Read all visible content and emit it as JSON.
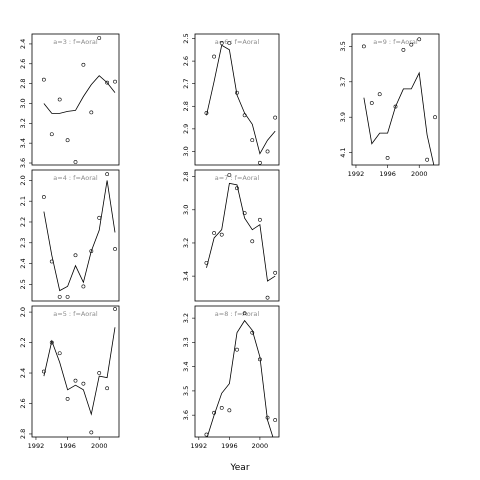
{
  "chart_data": {
    "type": "scatter",
    "xlabel": "Year",
    "panels": [
      {
        "strip": "a=3 : f=Aoral",
        "ylim": [
          3.62,
          2.3
        ],
        "yticks": [
          2.4,
          2.6,
          2.8,
          3.0,
          3.2,
          3.4,
          3.6
        ],
        "ytick_labels": [
          "2.4",
          "2.6",
          "2.8",
          "3.0",
          "3.2",
          "3.4",
          "3.6"
        ],
        "xticks": [],
        "points": [
          [
            1993,
            2.76
          ],
          [
            1994,
            3.31
          ],
          [
            1995,
            2.96
          ],
          [
            1996,
            3.37
          ],
          [
            1997,
            3.59
          ],
          [
            1998,
            2.61
          ],
          [
            1999,
            3.09
          ],
          [
            2000,
            2.34
          ],
          [
            2001,
            2.79
          ],
          [
            2002,
            2.78
          ]
        ],
        "fit": [
          [
            1993,
            3.0
          ],
          [
            1994,
            3.1
          ],
          [
            1995,
            3.1
          ],
          [
            1996,
            3.08
          ],
          [
            1997,
            3.07
          ],
          [
            1998,
            2.93
          ],
          [
            1999,
            2.81
          ],
          [
            2000,
            2.72
          ],
          [
            2001,
            2.79
          ],
          [
            2002,
            2.89
          ]
        ]
      },
      {
        "strip": "a=6 : f=Aoral",
        "ylim": [
          3.06,
          2.48
        ],
        "yticks": [
          2.5,
          2.6,
          2.7,
          2.8,
          2.9,
          3.0
        ],
        "ytick_labels": [
          "2.5",
          "2.6",
          "2.7",
          "2.8",
          "2.9",
          "3.0"
        ],
        "xticks": [],
        "points": [
          [
            1993,
            2.83
          ],
          [
            1994,
            2.58
          ],
          [
            1995,
            2.52
          ],
          [
            1996,
            2.52
          ],
          [
            1997,
            2.74
          ],
          [
            1998,
            2.84
          ],
          [
            1999,
            2.95
          ],
          [
            2000,
            3.05
          ],
          [
            2001,
            3.0
          ],
          [
            2002,
            2.85
          ]
        ],
        "fit": [
          [
            1993,
            2.84
          ],
          [
            1994,
            2.69
          ],
          [
            1995,
            2.53
          ],
          [
            1996,
            2.55
          ],
          [
            1997,
            2.75
          ],
          [
            1998,
            2.83
          ],
          [
            1999,
            2.88
          ],
          [
            2000,
            3.01
          ],
          [
            2001,
            2.95
          ],
          [
            2002,
            2.91
          ]
        ]
      },
      {
        "strip": "a=9 : f=Aoral",
        "ylim": [
          4.17,
          3.43
        ],
        "yticks": [
          3.5,
          3.7,
          3.9,
          4.1
        ],
        "ytick_labels": [
          "3.5",
          "3.7",
          "3.9",
          "4.1"
        ],
        "xticks": [
          1992,
          1996,
          2000
        ],
        "xtick_labels": [
          "1992",
          "1996",
          "2000"
        ],
        "points": [
          [
            1993,
            3.5
          ],
          [
            1994,
            3.82
          ],
          [
            1995,
            3.77
          ],
          [
            1996,
            4.13
          ],
          [
            1997,
            3.84
          ],
          [
            1998,
            3.52
          ],
          [
            1999,
            3.49
          ],
          [
            2000,
            3.46
          ],
          [
            2001,
            4.14
          ],
          [
            2002,
            3.9
          ]
        ],
        "fit": [
          [
            1993,
            3.79
          ],
          [
            1994,
            4.05
          ],
          [
            1995,
            3.99
          ],
          [
            1996,
            3.99
          ],
          [
            1997,
            3.84
          ],
          [
            1998,
            3.74
          ],
          [
            1999,
            3.74
          ],
          [
            2000,
            3.65
          ],
          [
            2001,
            4.0
          ],
          [
            2002,
            4.2
          ]
        ]
      },
      {
        "strip": "a=4 : f=Aoral",
        "ylim": [
          2.58,
          1.95
        ],
        "yticks": [
          2.0,
          2.1,
          2.2,
          2.3,
          2.4,
          2.5
        ],
        "ytick_labels": [
          "2.0",
          "2.1",
          "2.2",
          "2.3",
          "2.4",
          "2.5"
        ],
        "xticks": [],
        "points": [
          [
            1993,
            2.08
          ],
          [
            1994,
            2.39
          ],
          [
            1995,
            2.56
          ],
          [
            1996,
            2.56
          ],
          [
            1997,
            2.36
          ],
          [
            1998,
            2.51
          ],
          [
            1999,
            2.34
          ],
          [
            2000,
            2.18
          ],
          [
            2001,
            1.97
          ],
          [
            2002,
            2.33
          ]
        ],
        "fit": [
          [
            1993,
            2.15
          ],
          [
            1994,
            2.36
          ],
          [
            1995,
            2.53
          ],
          [
            1996,
            2.51
          ],
          [
            1997,
            2.41
          ],
          [
            1998,
            2.49
          ],
          [
            1999,
            2.34
          ],
          [
            2000,
            2.24
          ],
          [
            2001,
            2.0
          ],
          [
            2002,
            2.25
          ]
        ]
      },
      {
        "strip": "a=7 : f=Aoral",
        "ylim": [
          3.55,
          2.76
        ],
        "yticks": [
          2.8,
          3.0,
          3.2,
          3.4
        ],
        "ytick_labels": [
          "2.8",
          "3.0",
          "3.2",
          "3.4"
        ],
        "xticks": [],
        "points": [
          [
            1993,
            3.32
          ],
          [
            1994,
            3.14
          ],
          [
            1995,
            3.15
          ],
          [
            1996,
            2.79
          ],
          [
            1997,
            2.87
          ],
          [
            1998,
            3.02
          ],
          [
            1999,
            3.19
          ],
          [
            2000,
            3.06
          ],
          [
            2001,
            3.53
          ],
          [
            2002,
            3.38
          ]
        ],
        "fit": [
          [
            1993,
            3.35
          ],
          [
            1994,
            3.17
          ],
          [
            1995,
            3.12
          ],
          [
            1996,
            2.84
          ],
          [
            1997,
            2.85
          ],
          [
            1998,
            3.05
          ],
          [
            1999,
            3.12
          ],
          [
            2000,
            3.09
          ],
          [
            2001,
            3.43
          ],
          [
            2002,
            3.4
          ]
        ]
      },
      {
        "strip": "a=5 : f=Aoral",
        "ylim": [
          2.82,
          1.96
        ],
        "yticks": [
          2.0,
          2.2,
          2.4,
          2.6,
          2.8
        ],
        "ytick_labels": [
          "2.0",
          "2.2",
          "2.4",
          "2.6",
          "2.8"
        ],
        "xticks": [
          1992,
          1996,
          2000
        ],
        "xtick_labels": [
          "1992",
          "1996",
          "2000"
        ],
        "points": [
          [
            1993,
            2.39
          ],
          [
            1994,
            2.2
          ],
          [
            1995,
            2.27
          ],
          [
            1996,
            2.57
          ],
          [
            1997,
            2.45
          ],
          [
            1998,
            2.47
          ],
          [
            1999,
            2.79
          ],
          [
            2000,
            2.4
          ],
          [
            2001,
            2.5
          ],
          [
            2002,
            1.98
          ]
        ],
        "fit": [
          [
            1993,
            2.42
          ],
          [
            1994,
            2.19
          ],
          [
            1995,
            2.33
          ],
          [
            1996,
            2.51
          ],
          [
            1997,
            2.48
          ],
          [
            1998,
            2.51
          ],
          [
            1999,
            2.67
          ],
          [
            2000,
            2.42
          ],
          [
            2001,
            2.43
          ],
          [
            2002,
            2.1
          ]
        ]
      },
      {
        "strip": "a=8 : f=Aoral",
        "ylim": [
          3.69,
          3.15
        ],
        "yticks": [
          3.2,
          3.3,
          3.4,
          3.5,
          3.6
        ],
        "ytick_labels": [
          "3.2",
          "3.3",
          "3.4",
          "3.5",
          "3.6"
        ],
        "xticks": [
          1992,
          1996,
          2000
        ],
        "xtick_labels": [
          "1992",
          "1996",
          "2000"
        ],
        "points": [
          [
            1993,
            3.68
          ],
          [
            1994,
            3.59
          ],
          [
            1995,
            3.57
          ],
          [
            1996,
            3.58
          ],
          [
            1997,
            3.33
          ],
          [
            1998,
            3.18
          ],
          [
            1999,
            3.26
          ],
          [
            2000,
            3.37
          ],
          [
            2001,
            3.61
          ],
          [
            2002,
            3.62
          ]
        ],
        "fit": [
          [
            1993,
            3.7
          ],
          [
            1994,
            3.6
          ],
          [
            1995,
            3.51
          ],
          [
            1996,
            3.47
          ],
          [
            1997,
            3.26
          ],
          [
            1998,
            3.21
          ],
          [
            1999,
            3.25
          ],
          [
            2000,
            3.36
          ],
          [
            2001,
            3.62
          ],
          [
            2002,
            3.72
          ]
        ]
      }
    ]
  }
}
